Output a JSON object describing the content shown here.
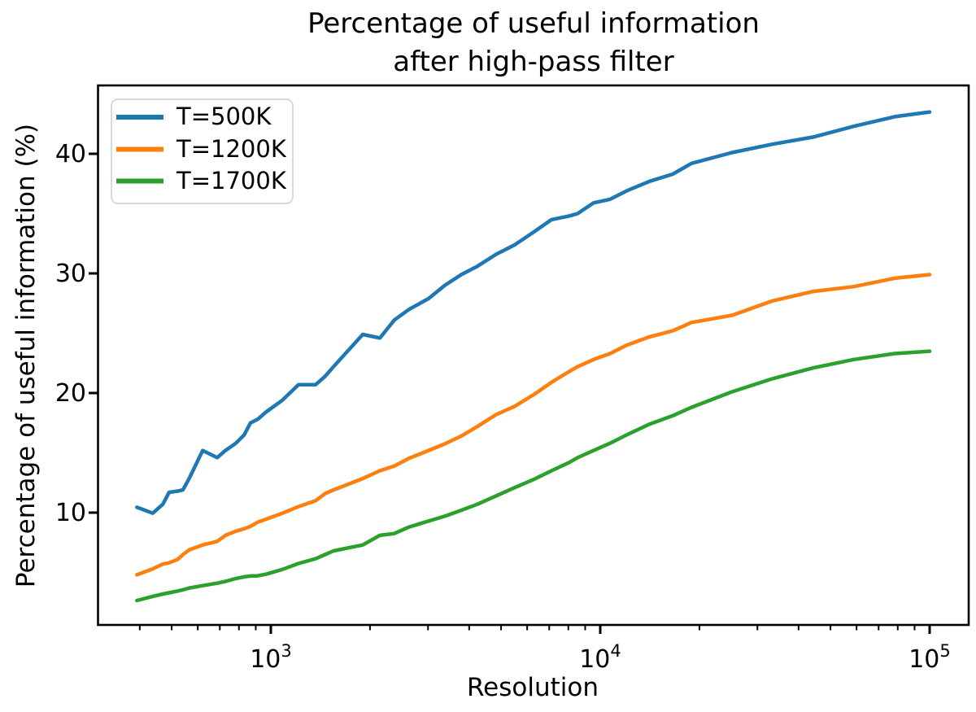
{
  "title": {
    "line1": "Percentage of useful information",
    "line2": "after high-pass filter"
  },
  "colors": {
    "axis": "#000000",
    "background": "#ffffff",
    "legend_border": "#d9d9d9",
    "series_blue": "#1f77b4",
    "series_orange": "#ff7f0e",
    "series_green": "#2ca02c"
  },
  "chart_data": {
    "type": "line",
    "title": "Percentage of useful information after high-pass filter",
    "xlabel": "Resolution",
    "ylabel": "Percentage of useful information (%)",
    "x_scale": "log",
    "y_scale": "linear",
    "grid": false,
    "xlim": [
      297,
      131800
    ],
    "ylim": [
      0.6,
      45.9
    ],
    "legend_position": "upper left",
    "x_ticks": [
      {
        "base": "10",
        "exp": "3",
        "value": 1000
      },
      {
        "base": "10",
        "exp": "4",
        "value": 10000
      },
      {
        "base": "10",
        "exp": "5",
        "value": 100000
      }
    ],
    "y_ticks": [
      10,
      20,
      30,
      40
    ],
    "x": [
      392,
      438,
      470,
      491,
      522,
      541,
      566,
      621,
      687,
      728,
      783,
      830,
      867,
      912,
      966,
      1084,
      1213,
      1368,
      1462,
      1549,
      1901,
      2143,
      2371,
      2630,
      3013,
      3373,
      3784,
      4236,
      4831,
      5508,
      6310,
      7112,
      8054,
      8531,
      9550,
      10715,
      12023,
      14125,
      16596,
      18923,
      25119,
      33343,
      44365,
      58884,
      78343,
      100000
    ],
    "series": [
      {
        "name": "T=500K",
        "color": "#1f77b4",
        "values": [
          10.45,
          9.95,
          10.7,
          11.7,
          11.8,
          11.9,
          12.9,
          15.2,
          14.6,
          15.2,
          15.8,
          16.5,
          17.5,
          17.8,
          18.4,
          19.4,
          20.7,
          20.7,
          21.4,
          22.2,
          24.9,
          24.6,
          26.1,
          27.0,
          27.9,
          29.0,
          29.9,
          30.6,
          31.6,
          32.4,
          33.5,
          34.5,
          34.8,
          35.0,
          35.9,
          36.2,
          36.9,
          37.7,
          38.3,
          39.2,
          40.1,
          40.8,
          41.4,
          42.3,
          43.1,
          43.5
        ]
      },
      {
        "name": "T=1200K",
        "color": "#ff7f0e",
        "values": [
          4.8,
          5.3,
          5.7,
          5.8,
          6.1,
          6.5,
          6.9,
          7.3,
          7.6,
          8.1,
          8.45,
          8.65,
          8.85,
          9.2,
          9.45,
          9.95,
          10.5,
          11.0,
          11.6,
          11.9,
          12.85,
          13.5,
          13.9,
          14.55,
          15.2,
          15.75,
          16.4,
          17.2,
          18.2,
          18.9,
          19.9,
          20.9,
          21.8,
          22.2,
          22.8,
          23.3,
          24.0,
          24.7,
          25.2,
          25.9,
          26.5,
          27.7,
          28.5,
          28.9,
          29.6,
          29.9
        ]
      },
      {
        "name": "T=1700K",
        "color": "#2ca02c",
        "values": [
          2.65,
          3.0,
          3.2,
          3.3,
          3.45,
          3.55,
          3.7,
          3.9,
          4.1,
          4.25,
          4.5,
          4.63,
          4.7,
          4.72,
          4.85,
          5.25,
          5.75,
          6.15,
          6.5,
          6.8,
          7.3,
          8.1,
          8.25,
          8.8,
          9.3,
          9.7,
          10.2,
          10.7,
          11.4,
          12.1,
          12.8,
          13.5,
          14.2,
          14.6,
          15.2,
          15.8,
          16.5,
          17.4,
          18.1,
          18.8,
          20.1,
          21.2,
          22.1,
          22.8,
          23.3,
          23.5
        ]
      }
    ]
  }
}
